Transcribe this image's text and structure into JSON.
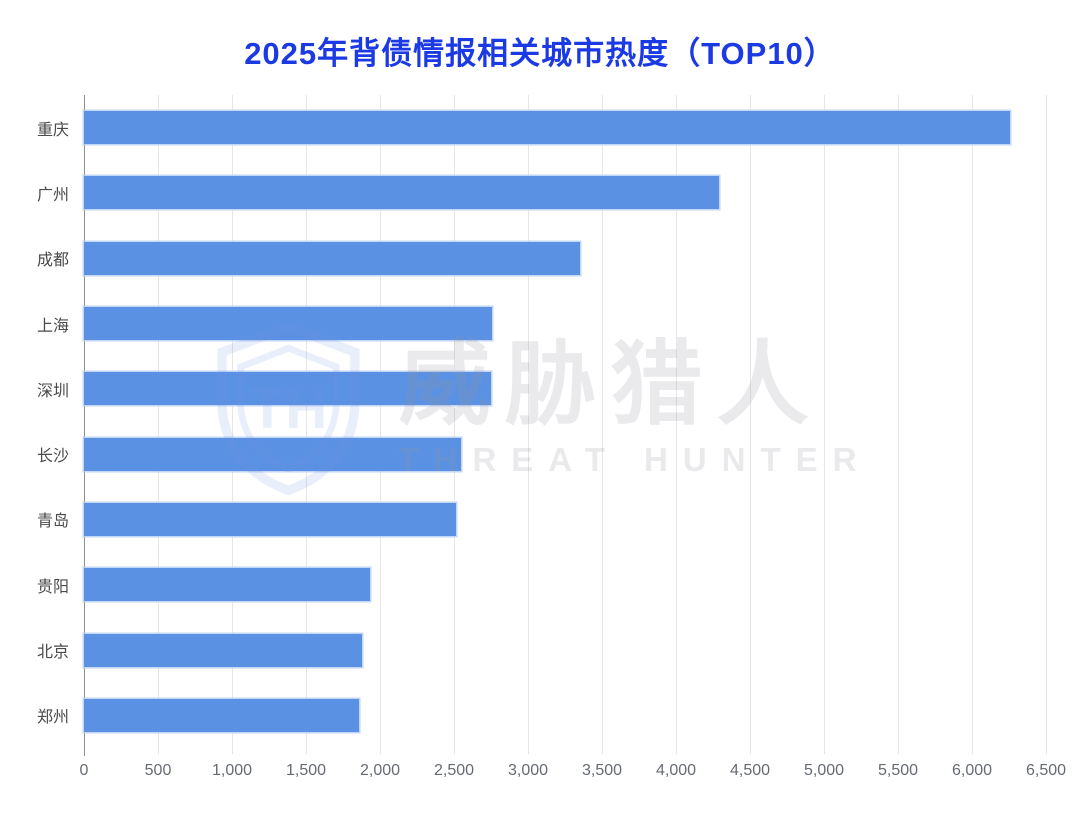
{
  "title": "2025年背债情报相关城市热度（TOP10）",
  "watermark": {
    "logo": "threat-hunter-shield-logo",
    "cn": "威胁猎人",
    "en": "THREAT HUNTER"
  },
  "colors": {
    "title": "#1c3ae3",
    "bar": "#5b91e2",
    "bar_border": "#b9cff2",
    "gridline": "#e6e6e6",
    "axis_line": "#8f8f8f",
    "x_tick_label": "#666a73",
    "category_label": "#4a4a4a",
    "watermark": "#eeeff1"
  },
  "chart_data": {
    "type": "bar",
    "orientation": "horizontal",
    "title": "2025年背债情报相关城市热度（TOP10）",
    "categories": [
      "重庆",
      "广州",
      "成都",
      "上海",
      "深圳",
      "长沙",
      "青岛",
      "贵阳",
      "北京",
      "郑州"
    ],
    "values": [
      6260,
      4290,
      3350,
      2760,
      2750,
      2545,
      2515,
      1930,
      1875,
      1860
    ],
    "xlabel": "",
    "ylabel": "",
    "xlim": [
      0,
      6500
    ],
    "x_tick_step": 500,
    "x_tick_labels": [
      "0",
      "500",
      "1,000",
      "1,500",
      "2,000",
      "2,500",
      "3,000",
      "3,500",
      "4,000",
      "4,500",
      "5,000",
      "5,500",
      "6,000",
      "6,500"
    ],
    "grid": true,
    "legend": false
  }
}
